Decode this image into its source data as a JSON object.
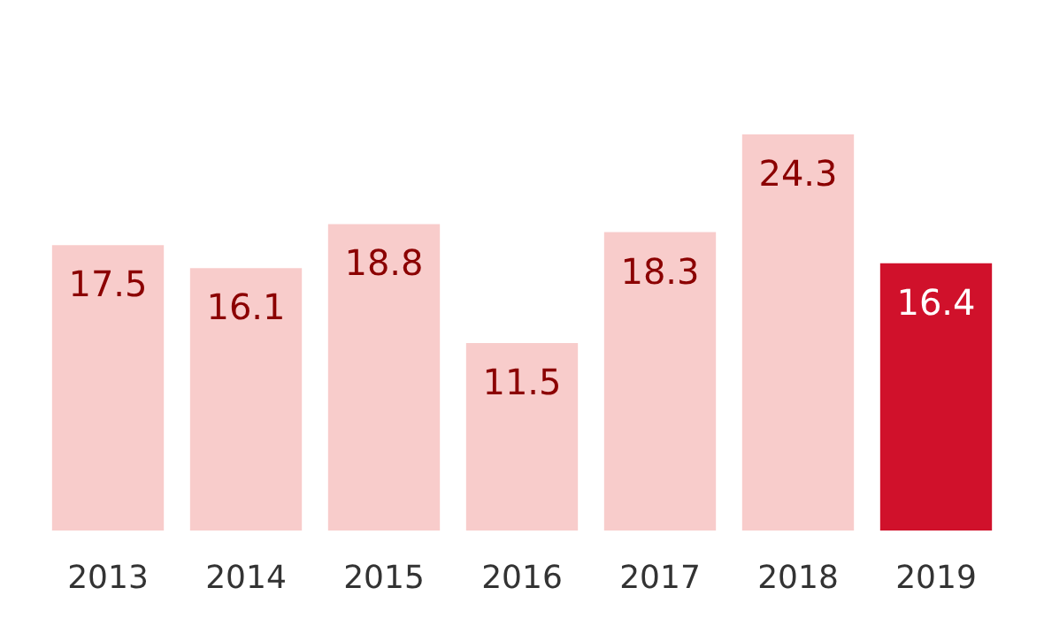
{
  "chart_data": {
    "type": "bar",
    "categories": [
      "2013",
      "2014",
      "2015",
      "2016",
      "2017",
      "2018",
      "2019"
    ],
    "values": [
      17.5,
      16.1,
      18.8,
      11.5,
      18.3,
      24.3,
      16.4
    ],
    "colors": [
      "#f8cccb",
      "#f8cccb",
      "#f8cccb",
      "#f8cccb",
      "#f8cccb",
      "#f8cccb",
      "#d0112b"
    ],
    "data_labels": true
  }
}
